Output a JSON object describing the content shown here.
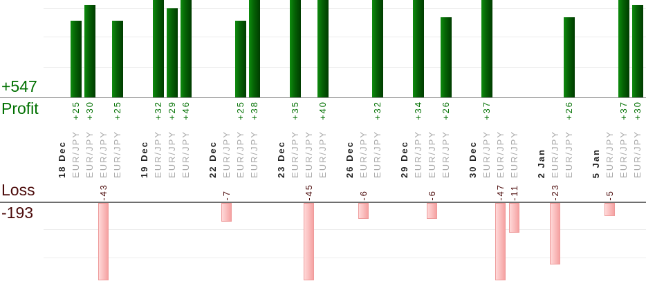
{
  "summary": {
    "profit_total_label": "+547",
    "profit_axis_label": "Profit",
    "loss_axis_label": "Loss",
    "loss_total_label": "-193"
  },
  "chart_data": {
    "type": "bar",
    "title": "",
    "ylabel_top": "Profit",
    "ylabel_bottom": "Loss",
    "profit_total": 547,
    "loss_total": -193,
    "gridline_interval": 10,
    "grid": true,
    "top_axis_visible_range": [
      0,
      32
    ],
    "bottom_axis_visible_range": [
      -29,
      0
    ],
    "groups": [
      {
        "date": "18 Dec",
        "trades": [
          {
            "symbol": "EUR/JPY",
            "pips": 25,
            "label": "+25"
          },
          {
            "symbol": "EUR/JPY",
            "pips": 30,
            "label": "+30"
          },
          {
            "symbol": "EUR/JPY",
            "pips": -43,
            "label": "-43"
          },
          {
            "symbol": "EUR/JPY",
            "pips": 25,
            "label": "+25"
          }
        ]
      },
      {
        "date": "19 Dec",
        "trades": [
          {
            "symbol": "EUR/JPY",
            "pips": 32,
            "label": "+32"
          },
          {
            "symbol": "EUR/JPY",
            "pips": 29,
            "label": "+29"
          },
          {
            "symbol": "EUR/JPY",
            "pips": 46,
            "label": "+46"
          }
        ]
      },
      {
        "date": "22 Dec",
        "trades": [
          {
            "symbol": "EUR/JPY",
            "pips": -7,
            "label": "-7"
          },
          {
            "symbol": "EUR/JPY",
            "pips": 25,
            "label": "+25"
          },
          {
            "symbol": "EUR/JPY",
            "pips": 38,
            "label": "+38"
          }
        ]
      },
      {
        "date": "23 Dec",
        "trades": [
          {
            "symbol": "EUR/JPY",
            "pips": 35,
            "label": "+35"
          },
          {
            "symbol": "EUR/JPY",
            "pips": -45,
            "label": "-45"
          },
          {
            "symbol": "EUR/JPY",
            "pips": 40,
            "label": "+40"
          }
        ]
      },
      {
        "date": "26 Dec",
        "trades": [
          {
            "symbol": "EUR/JPY",
            "pips": -6,
            "label": "-6"
          },
          {
            "symbol": "EUR/JPY",
            "pips": 32,
            "label": "+32"
          }
        ]
      },
      {
        "date": "29 Dec",
        "trades": [
          {
            "symbol": "EUR/JPY",
            "pips": 34,
            "label": "+34"
          },
          {
            "symbol": "EUR/JPY",
            "pips": -6,
            "label": "-6"
          },
          {
            "symbol": "EUR/JPY",
            "pips": 26,
            "label": "+26"
          }
        ]
      },
      {
        "date": "30 Dec",
        "trades": [
          {
            "symbol": "EUR/JPY",
            "pips": 37,
            "label": "+37"
          },
          {
            "symbol": "EUR/JPY",
            "pips": -47,
            "label": "-47"
          },
          {
            "symbol": "EUR/JPY",
            "pips": -11,
            "label": "-11"
          }
        ]
      },
      {
        "date": "2 Jan",
        "trades": [
          {
            "symbol": "EUR/JPY",
            "pips": -23,
            "label": "-23"
          },
          {
            "symbol": "EUR/JPY",
            "pips": 26,
            "label": "+26"
          }
        ]
      },
      {
        "date": "5 Jan",
        "trades": [
          {
            "symbol": "EUR/JPY",
            "pips": -5,
            "label": "-5"
          },
          {
            "symbol": "EUR/JPY",
            "pips": 37,
            "label": "+37"
          },
          {
            "symbol": "EUR/JPY",
            "pips": 30,
            "label": "+30"
          }
        ]
      }
    ]
  },
  "colors": {
    "profit_text": "#007000",
    "loss_text": "#4b0a0a",
    "profit_bar_light": "#0e8c0e",
    "profit_bar_dark": "#003c00",
    "loss_bar_light": "#ffd9d9",
    "loss_bar_dark": "#f5a2a2",
    "loss_bar_border": "#ee9a9a",
    "date_text": "#222222",
    "symbol_text": "#aaaaaa",
    "axis_top": "#909090",
    "axis_bottom": "#6e6e6e",
    "gridline": "#ececec"
  }
}
